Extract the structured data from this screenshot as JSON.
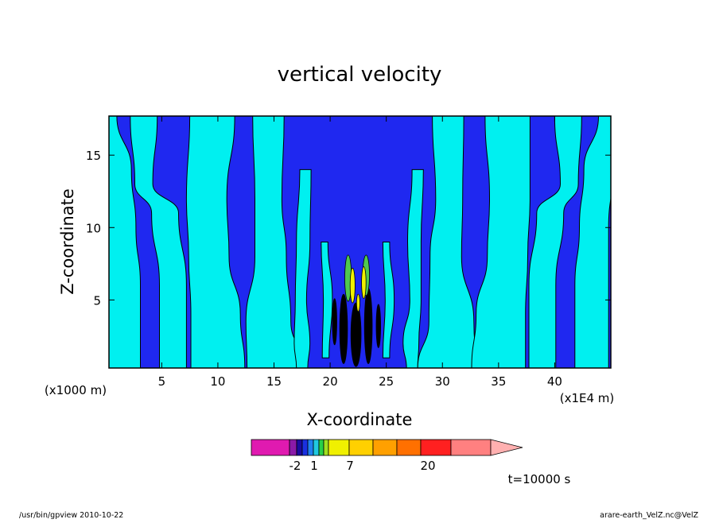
{
  "chart_data": {
    "type": "heatmap",
    "title": "vertical velocity",
    "xlabel": "X-coordinate",
    "ylabel": "Z-coordinate",
    "x_scale_note": "(x1000 m)",
    "x_unit_note": "(x1E4 m)",
    "xlim": [
      0.3,
      45
    ],
    "ylim": [
      0.3,
      17.7
    ],
    "x_ticks": [
      5,
      10,
      15,
      20,
      25,
      30,
      35,
      40
    ],
    "y_ticks": [
      5,
      10,
      15
    ],
    "time_label": "t=10000 s",
    "colorbar": {
      "colors": [
        "#e01ab0",
        "#8a1aa8",
        "#1a0aa0",
        "#1a30e0",
        "#2080f0",
        "#20c8e0",
        "#28d048",
        "#a0e020",
        "#f0f000",
        "#ffd000",
        "#ffa000",
        "#ff7000",
        "#ff2020",
        "#ff8080",
        "#ffb0b0"
      ],
      "tick_labels": [
        "-2",
        "1",
        "7",
        "20"
      ]
    },
    "field_colors": {
      "positive_band": "#00f0f0",
      "negative_band": "#1f28f0",
      "core_weak": "#50c850",
      "core_strong": "#f0f000",
      "core_dark": "#000000"
    }
  },
  "footer": {
    "left": "/usr/bin/gpview   2010-10-22",
    "right": "arare-earth_VelZ.nc@VelZ"
  }
}
